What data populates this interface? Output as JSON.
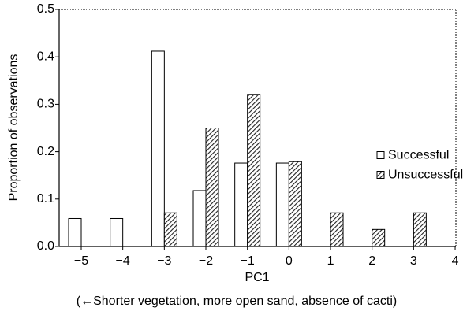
{
  "chart_data": {
    "type": "bar",
    "y_label": "Proportion of observations",
    "x_label": "PC1",
    "x_sublabel": "(←Shorter vegetation, more open sand, absence of cacti)",
    "categories": [
      "−5",
      "−4",
      "−3",
      "−2",
      "−1",
      "0",
      "1",
      "2",
      "3",
      "4"
    ],
    "series": [
      {
        "name": "Successful",
        "color": "#ffffff",
        "hatch": false,
        "values": [
          0.059,
          0.059,
          0.412,
          0.118,
          0.176,
          0.176,
          0,
          0,
          0,
          0
        ]
      },
      {
        "name": "Unsuccessful",
        "color": "#ffffff",
        "hatch": true,
        "values": [
          0,
          0,
          0.071,
          0.25,
          0.321,
          0.179,
          0.071,
          0.036,
          0.071,
          0
        ]
      }
    ],
    "ylim": [
      0,
      0.5
    ],
    "yticks": [
      {
        "value": 0,
        "label": "0.0"
      },
      0.1,
      0.2,
      0.3,
      0.4,
      0.5
    ],
    "legend": "right",
    "grid": false
  }
}
